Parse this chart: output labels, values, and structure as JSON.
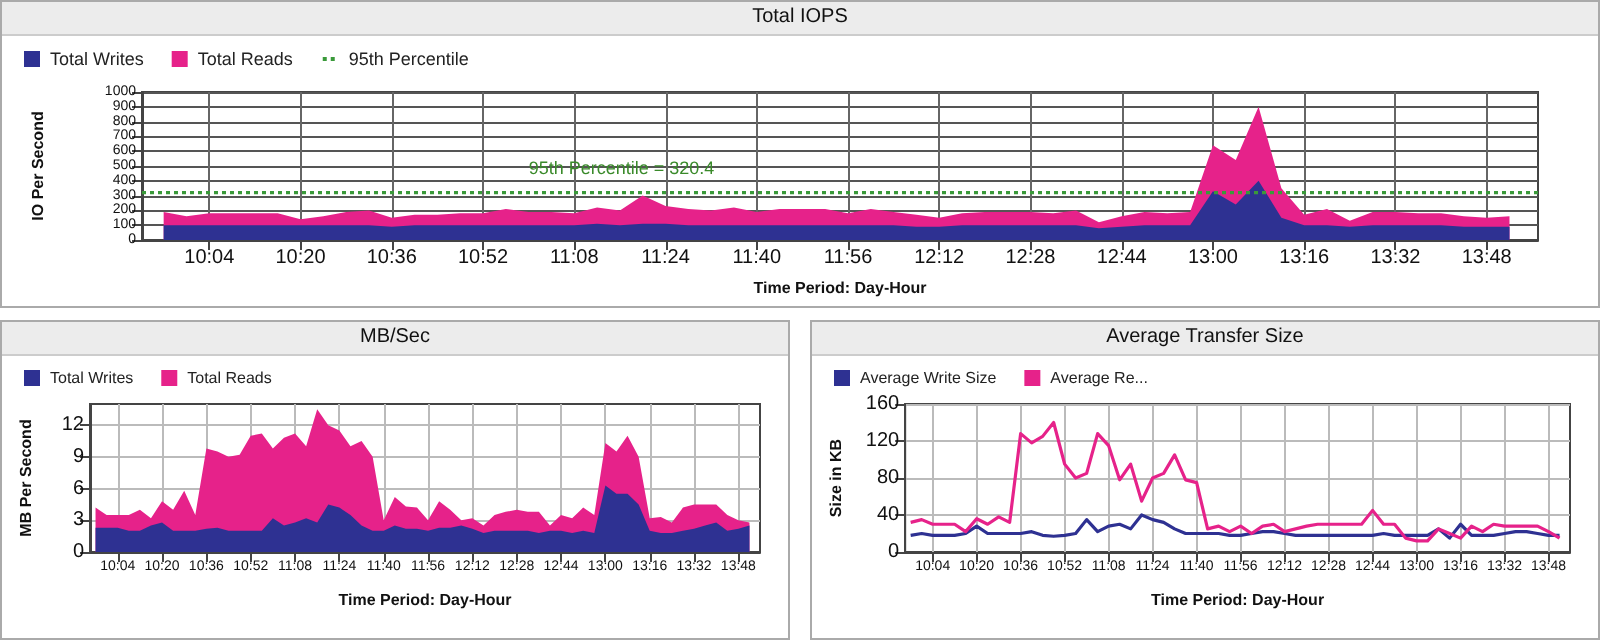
{
  "chart_data": [
    {
      "type": "area",
      "title": "Total IOPS",
      "xlabel": "Time Period: Day-Hour",
      "ylabel": "IO Per Second",
      "stacked": true,
      "grid": true,
      "legend": "top left",
      "x": [
        9.9333,
        10,
        10.0667,
        10.1333,
        10.2,
        10.2667,
        10.3333,
        10.4,
        10.4667,
        10.5333,
        10.6,
        10.6667,
        10.7333,
        10.8,
        10.8667,
        10.9333,
        11,
        11.0667,
        11.1333,
        11.2,
        11.2667,
        11.3333,
        11.4,
        11.4667,
        11.5333,
        11.6,
        11.6667,
        11.7333,
        11.8,
        11.8667,
        11.9333,
        12,
        12.0667,
        12.1333,
        12.2,
        12.2667,
        12.3333,
        12.4,
        12.4667,
        12.5333,
        12.6,
        12.6667,
        12.7333,
        12.8,
        12.8667,
        12.9333,
        13,
        13.0667,
        13.1333,
        13.2,
        13.2667,
        13.3333,
        13.4,
        13.4667,
        13.5333,
        13.6,
        13.6667,
        13.7333,
        13.8,
        13.8667
      ],
      "xlim": [
        9.87,
        13.95
      ],
      "xticks": [
        {
          "value": 10.0667,
          "label": "10:04"
        },
        {
          "value": 10.3333,
          "label": "10:20"
        },
        {
          "value": 10.6,
          "label": "10:36"
        },
        {
          "value": 10.8667,
          "label": "10:52"
        },
        {
          "value": 11.1333,
          "label": "11:08"
        },
        {
          "value": 11.4,
          "label": "11:24"
        },
        {
          "value": 11.6667,
          "label": "11:40"
        },
        {
          "value": 11.9333,
          "label": "11:56"
        },
        {
          "value": 12.2,
          "label": "12:12"
        },
        {
          "value": 12.4667,
          "label": "12:28"
        },
        {
          "value": 12.7333,
          "label": "12:44"
        },
        {
          "value": 13,
          "label": "13:00"
        },
        {
          "value": 13.2667,
          "label": "13:16"
        },
        {
          "value": 13.5333,
          "label": "13:32"
        },
        {
          "value": 13.8,
          "label": "13:48"
        }
      ],
      "ylim": [
        0,
        1000
      ],
      "yticks": [
        0,
        100,
        200,
        300,
        400,
        500,
        600,
        700,
        800,
        900,
        1000
      ],
      "series": [
        {
          "name": "Total Writes",
          "color": "#2e3192",
          "values": [
            100,
            100,
            100,
            100,
            100,
            100,
            100,
            100,
            100,
            100,
            90,
            100,
            100,
            100,
            100,
            100,
            100,
            100,
            100,
            110,
            100,
            110,
            110,
            100,
            100,
            100,
            100,
            100,
            100,
            100,
            100,
            100,
            100,
            90,
            90,
            100,
            100,
            100,
            100,
            100,
            100,
            80,
            90,
            100,
            100,
            100,
            330,
            240,
            400,
            150,
            100,
            100,
            90,
            100,
            100,
            100,
            100,
            90,
            90,
            90
          ]
        },
        {
          "name": "Total Reads",
          "color": "#e6228a",
          "values": [
            90,
            60,
            80,
            80,
            80,
            80,
            40,
            60,
            90,
            100,
            60,
            70,
            70,
            80,
            80,
            110,
            90,
            90,
            80,
            110,
            100,
            190,
            120,
            110,
            100,
            120,
            90,
            110,
            110,
            110,
            80,
            110,
            90,
            80,
            60,
            80,
            90,
            90,
            90,
            80,
            100,
            40,
            70,
            90,
            80,
            90,
            310,
            300,
            500,
            200,
            70,
            110,
            40,
            90,
            90,
            80,
            80,
            70,
            60,
            70
          ]
        },
        {
          "name": "95th Percentile",
          "type": "line",
          "line_style": "dotted",
          "color": "#3a9a3a",
          "x": [
            9.87,
            13.95
          ],
          "values": [
            320.4,
            320.4
          ]
        }
      ],
      "annotations": [
        {
          "text": "95th Percentile = 320.4",
          "x": 11.0,
          "y": 320.4
        }
      ]
    },
    {
      "type": "area",
      "title": "MB/Sec",
      "xlabel": "Time Period: Day-Hour",
      "ylabel": "MB Per Second",
      "stacked": true,
      "grid": true,
      "legend": "top left",
      "x": [
        9.9333,
        10,
        10.0667,
        10.1333,
        10.2,
        10.2667,
        10.3333,
        10.4,
        10.4667,
        10.5333,
        10.6,
        10.6667,
        10.7333,
        10.8,
        10.8667,
        10.9333,
        11,
        11.0667,
        11.1333,
        11.2,
        11.2667,
        11.3333,
        11.4,
        11.4667,
        11.5333,
        11.6,
        11.6667,
        11.7333,
        11.8,
        11.8667,
        11.9333,
        12,
        12.0667,
        12.1333,
        12.2,
        12.2667,
        12.3333,
        12.4,
        12.4667,
        12.5333,
        12.6,
        12.6667,
        12.7333,
        12.8,
        12.8667,
        12.9333,
        13,
        13.0667,
        13.1333,
        13.2,
        13.2667,
        13.3333,
        13.4,
        13.4667,
        13.5333,
        13.6,
        13.6667,
        13.7333,
        13.8,
        13.8667
      ],
      "xlim": [
        9.9,
        13.93
      ],
      "xticks": [
        {
          "value": 10.0667,
          "label": "10:04"
        },
        {
          "value": 10.3333,
          "label": "10:20"
        },
        {
          "value": 10.6,
          "label": "10:36"
        },
        {
          "value": 10.8667,
          "label": "10:52"
        },
        {
          "value": 11.1333,
          "label": "11:08"
        },
        {
          "value": 11.4,
          "label": "11:24"
        },
        {
          "value": 11.6667,
          "label": "11:40"
        },
        {
          "value": 11.9333,
          "label": "11:56"
        },
        {
          "value": 12.2,
          "label": "12:12"
        },
        {
          "value": 12.4667,
          "label": "12:28"
        },
        {
          "value": 12.7333,
          "label": "12:44"
        },
        {
          "value": 13,
          "label": "13:00"
        },
        {
          "value": 13.2667,
          "label": "13:16"
        },
        {
          "value": 13.5333,
          "label": "13:32"
        },
        {
          "value": 13.8,
          "label": "13:48"
        }
      ],
      "ylim": [
        0,
        14
      ],
      "yticks": [
        0,
        3,
        6,
        9,
        12
      ],
      "series": [
        {
          "name": "Total Writes",
          "color": "#2e3192",
          "values": [
            2.3,
            2.3,
            2.3,
            2,
            2,
            2.5,
            2.8,
            2,
            2,
            2,
            2.2,
            2.3,
            2,
            2,
            2,
            2,
            3.2,
            2.5,
            2.8,
            3.2,
            2.8,
            4.5,
            4.2,
            3.5,
            2.5,
            2,
            2,
            2.5,
            2.2,
            2.2,
            2,
            2.3,
            2.3,
            2.5,
            2.2,
            1.8,
            2,
            2,
            2,
            2,
            1.8,
            2,
            2,
            1.8,
            2,
            1.8,
            6.3,
            5.5,
            5.5,
            4.5,
            2,
            1.8,
            1.8,
            2,
            2.2,
            2.5,
            2.8,
            2,
            2.2,
            2.5
          ]
        },
        {
          "name": "Total Reads",
          "color": "#e6228a",
          "values": [
            1.9,
            1.2,
            1.2,
            1.5,
            2,
            0.7,
            2,
            2,
            3.8,
            1.5,
            7.6,
            7.2,
            7,
            7.2,
            9,
            9.2,
            6.6,
            8.3,
            8.4,
            6.8,
            10.7,
            7.5,
            7.3,
            6.5,
            8,
            7,
            1,
            2.7,
            2.1,
            2,
            1,
            2.5,
            1.7,
            0.5,
            1,
            0.7,
            1.5,
            1.8,
            2,
            1.8,
            2,
            0.5,
            1.5,
            1.4,
            2.2,
            1.7,
            4,
            4,
            5.5,
            4.5,
            1.2,
            1.5,
            1,
            2.2,
            2.3,
            2,
            1.7,
            1.5,
            0.8,
            0.3
          ]
        }
      ]
    },
    {
      "type": "line",
      "title": "Average Transfer Size",
      "xlabel": "Time Period: Day-Hour",
      "ylabel": "Size in KB",
      "grid": true,
      "legend": "top left",
      "x": [
        9.9333,
        10,
        10.0667,
        10.1333,
        10.2,
        10.2667,
        10.3333,
        10.4,
        10.4667,
        10.5333,
        10.6,
        10.6667,
        10.7333,
        10.8,
        10.8667,
        10.9333,
        11,
        11.0667,
        11.1333,
        11.2,
        11.2667,
        11.3333,
        11.4,
        11.4667,
        11.5333,
        11.6,
        11.6667,
        11.7333,
        11.8,
        11.8667,
        11.9333,
        12,
        12.0667,
        12.1333,
        12.2,
        12.2667,
        12.3333,
        12.4,
        12.4667,
        12.5333,
        12.6,
        12.6667,
        12.7333,
        12.8,
        12.8667,
        12.9333,
        13,
        13.0667,
        13.1333,
        13.2,
        13.2667,
        13.3333,
        13.4,
        13.4667,
        13.5333,
        13.6,
        13.6667,
        13.7333,
        13.8,
        13.8667
      ],
      "xlim": [
        9.9,
        13.93
      ],
      "xticks": [
        {
          "value": 10.0667,
          "label": "10:04"
        },
        {
          "value": 10.3333,
          "label": "10:20"
        },
        {
          "value": 10.6,
          "label": "10:36"
        },
        {
          "value": 10.8667,
          "label": "10:52"
        },
        {
          "value": 11.1333,
          "label": "11:08"
        },
        {
          "value": 11.4,
          "label": "11:24"
        },
        {
          "value": 11.6667,
          "label": "11:40"
        },
        {
          "value": 11.9333,
          "label": "11:56"
        },
        {
          "value": 12.2,
          "label": "12:12"
        },
        {
          "value": 12.4667,
          "label": "12:28"
        },
        {
          "value": 12.7333,
          "label": "12:44"
        },
        {
          "value": 13,
          "label": "13:00"
        },
        {
          "value": 13.2667,
          "label": "13:16"
        },
        {
          "value": 13.5333,
          "label": "13:32"
        },
        {
          "value": 13.8,
          "label": "13:48"
        }
      ],
      "ylim": [
        0,
        160
      ],
      "yticks": [
        0,
        40,
        80,
        120,
        160
      ],
      "series": [
        {
          "name": "Average Write Size",
          "color": "#2e3192",
          "values": [
            18,
            20,
            18,
            18,
            18,
            20,
            28,
            20,
            20,
            20,
            20,
            22,
            18,
            17,
            18,
            20,
            35,
            22,
            28,
            30,
            25,
            40,
            35,
            32,
            25,
            20,
            20,
            20,
            20,
            18,
            18,
            20,
            22,
            22,
            20,
            18,
            18,
            18,
            18,
            18,
            18,
            18,
            18,
            20,
            18,
            18,
            18,
            18,
            25,
            15,
            30,
            18,
            18,
            18,
            20,
            22,
            22,
            20,
            18,
            18
          ]
        },
        {
          "name": "Average Re...",
          "color": "#e6228a",
          "values": [
            32,
            35,
            30,
            30,
            30,
            22,
            36,
            30,
            38,
            32,
            128,
            118,
            125,
            140,
            95,
            80,
            85,
            128,
            115,
            78,
            95,
            55,
            80,
            85,
            105,
            78,
            75,
            25,
            28,
            22,
            28,
            20,
            28,
            30,
            22,
            25,
            28,
            30,
            30,
            30,
            30,
            30,
            45,
            30,
            30,
            15,
            12,
            12,
            25,
            20,
            15,
            28,
            22,
            30,
            28,
            28,
            28,
            28,
            22,
            15
          ]
        }
      ]
    }
  ]
}
